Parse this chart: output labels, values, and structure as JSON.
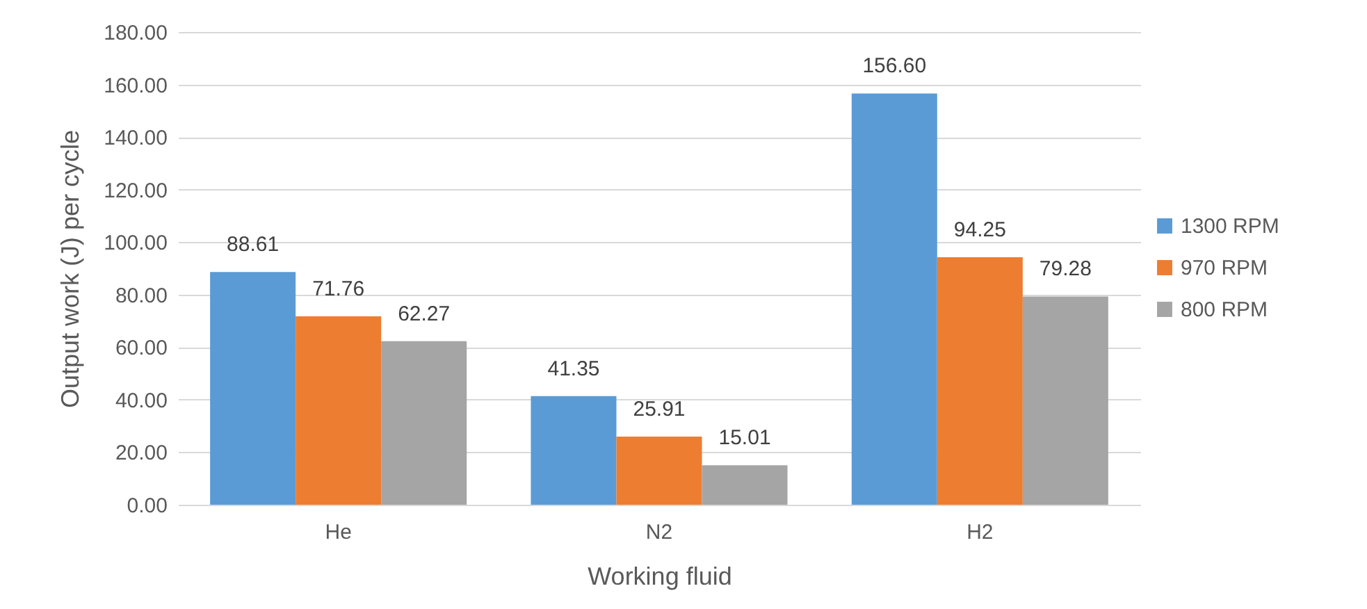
{
  "chart_data": {
    "type": "bar",
    "xlabel": "Working fluid",
    "ylabel": "Output work (J) per cycle",
    "categories": [
      "He",
      "N2",
      "H2"
    ],
    "series": [
      {
        "name": "1300 RPM",
        "color": "#5b9bd5",
        "values": [
          88.61,
          41.35,
          156.6
        ],
        "value_labels": [
          "88.61",
          "41.35",
          "156.60"
        ]
      },
      {
        "name": "970 RPM",
        "color": "#ed7d31",
        "values": [
          71.76,
          25.91,
          94.25
        ],
        "value_labels": [
          "71.76",
          "25.91",
          "94.25"
        ]
      },
      {
        "name": "800 RPM",
        "color": "#a5a5a5",
        "values": [
          62.27,
          15.01,
          79.28
        ],
        "value_labels": [
          "62.27",
          "15.01",
          "79.28"
        ]
      }
    ],
    "ylim": [
      0,
      180
    ],
    "yticks": [
      {
        "value": 0,
        "label": "0.00"
      },
      {
        "value": 20,
        "label": "20.00"
      },
      {
        "value": 40,
        "label": "40.00"
      },
      {
        "value": 60,
        "label": "60.00"
      },
      {
        "value": 80,
        "label": "80.00"
      },
      {
        "value": 100,
        "label": "100.00"
      },
      {
        "value": 120,
        "label": "120.00"
      },
      {
        "value": 140,
        "label": "140.00"
      },
      {
        "value": 160,
        "label": "160.00"
      },
      {
        "value": 180,
        "label": "180.00"
      }
    ],
    "grid": "y",
    "legend": "right"
  }
}
